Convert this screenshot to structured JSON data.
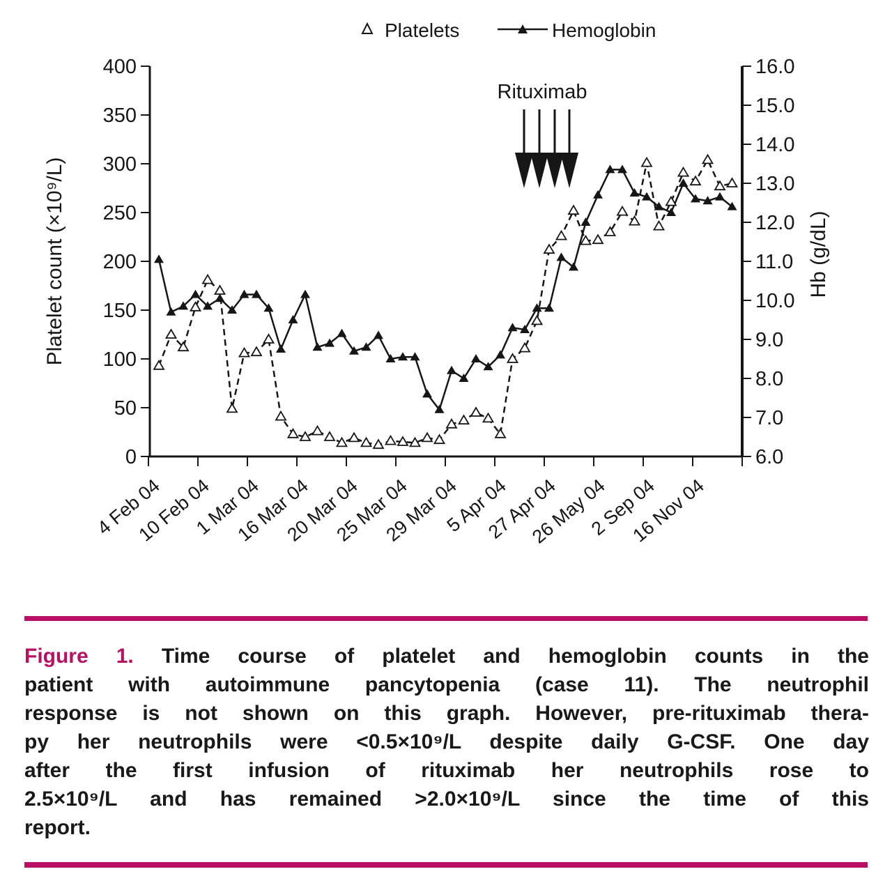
{
  "legend": {
    "platelets_label": "Platelets",
    "hemoglobin_label": "Hemoglobin"
  },
  "chart_data": {
    "type": "line",
    "title": "",
    "grid": false,
    "legend_position": "top-center",
    "x_tick_labels": [
      "4 Feb 04",
      "10 Feb 04",
      "1 Mar 04",
      "16 Mar 04",
      "20 Mar 04",
      "25 Mar 04",
      "29 Mar 04",
      "5 Apr 04",
      "27 Apr 04",
      "26 May 04",
      "2 Sep 04",
      "16 Nov 04"
    ],
    "left_axis": {
      "label": "Platelet count (×10⁹/L)",
      "min": 0,
      "max": 400,
      "step": 50,
      "ticks": [
        0,
        50,
        100,
        150,
        200,
        250,
        300,
        350,
        400
      ]
    },
    "right_axis": {
      "label": "Hb (g/dL)",
      "min": 6.0,
      "max": 16.0,
      "step": 1.0,
      "ticks": [
        "6.0",
        "7.0",
        "8.0",
        "9.0",
        "10.0",
        "11.0",
        "12.0",
        "13.0",
        "14.0",
        "15.0",
        "16.0"
      ]
    },
    "series": [
      {
        "name": "Platelets",
        "axis": "left",
        "marker": "open-triangle",
        "line_style": "dashed",
        "values": [
          93,
          125,
          112,
          153,
          181,
          170,
          49,
          106,
          107,
          120,
          41,
          23,
          20,
          26,
          20,
          14,
          19,
          14,
          12,
          16,
          15,
          14,
          19,
          17,
          33,
          37,
          45,
          39,
          23,
          100,
          111,
          139,
          212,
          226,
          252,
          221,
          222,
          230,
          251,
          241,
          301,
          236,
          261,
          291,
          282,
          304,
          277,
          280
        ]
      },
      {
        "name": "Hemoglobin",
        "axis": "right",
        "marker": "filled-triangle",
        "line_style": "solid",
        "values": [
          11.05,
          9.7,
          9.85,
          10.15,
          9.85,
          10.05,
          9.75,
          10.15,
          10.15,
          9.8,
          8.75,
          9.5,
          10.15,
          8.8,
          8.9,
          9.15,
          8.7,
          8.8,
          9.1,
          8.5,
          8.55,
          8.55,
          7.6,
          7.2,
          8.2,
          8.0,
          8.5,
          8.3,
          8.6,
          9.3,
          9.25,
          9.8,
          9.8,
          11.1,
          10.85,
          12.0,
          12.7,
          13.35,
          13.35,
          12.75,
          12.65,
          12.4,
          12.25,
          13.0,
          12.6,
          12.55,
          12.65,
          12.4
        ]
      }
    ],
    "annotation": {
      "text": "Rituximab",
      "arrow_count": 4
    }
  },
  "caption": {
    "label": "Figure 1.",
    "first_line": "Time course of platelet and hemoglobin counts in the",
    "lines": [
      "patient with autoimmune pancytopenia (case 11). The neutrophil",
      "response is not shown on this graph. However, pre-rituximab thera-",
      "py her neutrophils were <0.5×10⁹/L despite daily G-CSF. One day",
      "after the first infusion of rituximab her neutrophils rose to",
      "2.5×10⁹/L and has remained >2.0×10⁹/L since the time of this",
      "report."
    ]
  },
  "colors": {
    "accent": "#ba1064",
    "ink": "#161616"
  }
}
